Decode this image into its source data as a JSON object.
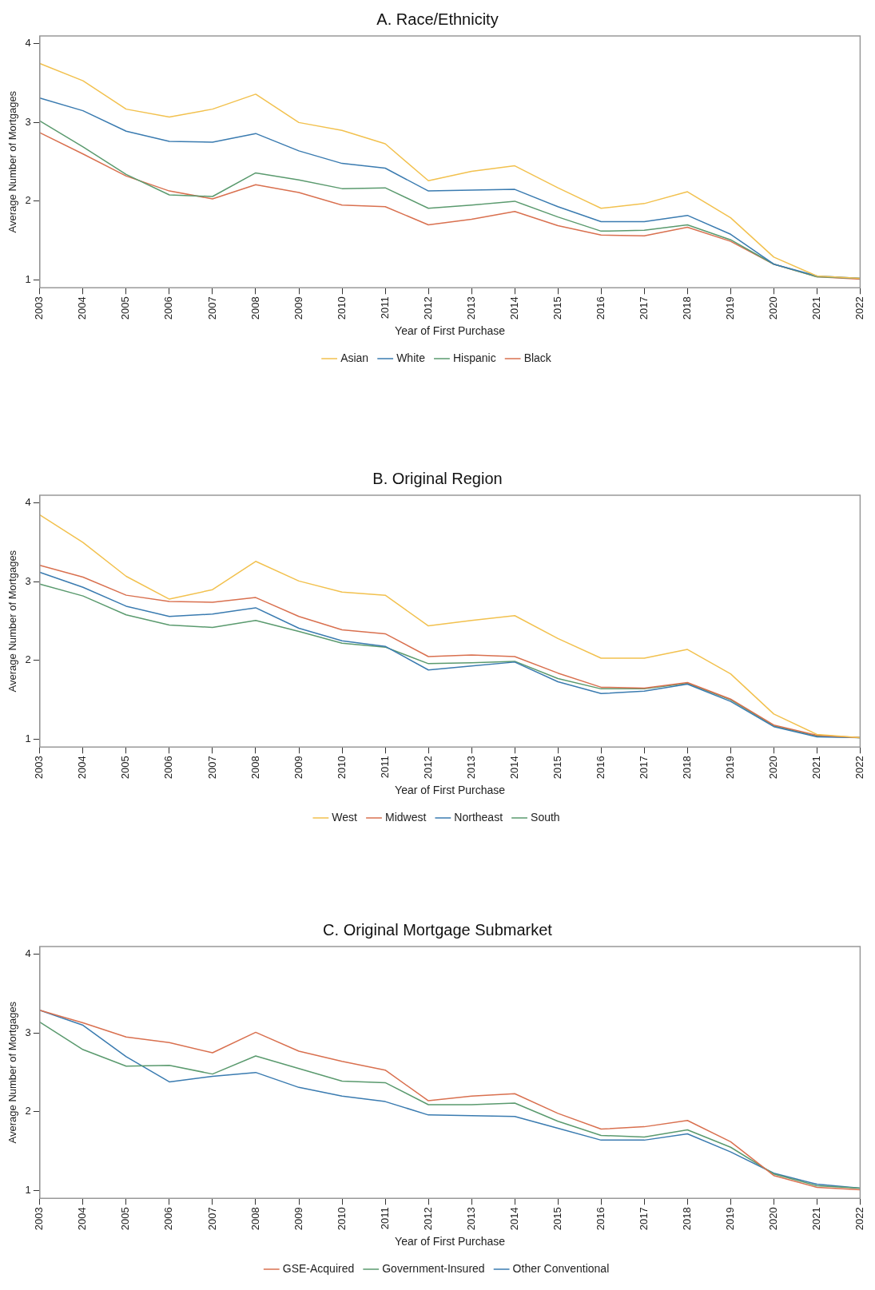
{
  "chart_data": [
    {
      "type": "line",
      "title": "A. Race/Ethnicity",
      "xlabel": "Year of First Purchase",
      "ylabel": "Average Number of Mortgages",
      "categories": [
        "2003",
        "2004",
        "2005",
        "2006",
        "2007",
        "2008",
        "2009",
        "2010",
        "2011",
        "2012",
        "2013",
        "2014",
        "2015",
        "2016",
        "2017",
        "2018",
        "2019",
        "2020",
        "2021",
        "2022"
      ],
      "ylim": [
        0.9,
        4.1
      ],
      "yticks": [
        1,
        2,
        3,
        4
      ],
      "grid": false,
      "legend": "bottom",
      "marker": "none",
      "line_style": "solid",
      "series": [
        {
          "name": "Asian",
          "color": "#f2c14e",
          "values": [
            3.75,
            3.53,
            3.17,
            3.07,
            3.17,
            3.36,
            3.0,
            2.9,
            2.73,
            2.26,
            2.38,
            2.45,
            2.17,
            1.91,
            1.97,
            2.12,
            1.79,
            1.29,
            1.05,
            1.02
          ]
        },
        {
          "name": "White",
          "color": "#3a7bb0",
          "values": [
            3.31,
            3.15,
            2.89,
            2.76,
            2.75,
            2.86,
            2.64,
            2.48,
            2.42,
            2.13,
            2.14,
            2.15,
            1.93,
            1.74,
            1.74,
            1.82,
            1.58,
            1.2,
            1.05,
            1.02
          ]
        },
        {
          "name": "Hispanic",
          "color": "#5a9a6e",
          "values": [
            3.02,
            2.69,
            2.34,
            2.08,
            2.06,
            2.36,
            2.27,
            2.16,
            2.17,
            1.91,
            1.95,
            2.0,
            1.8,
            1.62,
            1.63,
            1.7,
            1.51,
            1.2,
            1.04,
            1.02
          ]
        },
        {
          "name": "Black",
          "color": "#d9704f",
          "values": [
            2.87,
            2.6,
            2.32,
            2.13,
            2.03,
            2.21,
            2.11,
            1.95,
            1.93,
            1.7,
            1.77,
            1.87,
            1.69,
            1.57,
            1.56,
            1.67,
            1.49,
            1.2,
            1.04,
            1.01
          ]
        }
      ]
    },
    {
      "type": "line",
      "title": "B. Original Region",
      "xlabel": "Year of First Purchase",
      "ylabel": "Average Number of Mortgages",
      "categories": [
        "2003",
        "2004",
        "2005",
        "2006",
        "2007",
        "2008",
        "2009",
        "2010",
        "2011",
        "2012",
        "2013",
        "2014",
        "2015",
        "2016",
        "2017",
        "2018",
        "2019",
        "2020",
        "2021",
        "2022"
      ],
      "ylim": [
        0.9,
        4.1
      ],
      "yticks": [
        1,
        2,
        3,
        4
      ],
      "grid": false,
      "legend": "bottom",
      "marker": "none",
      "line_style": "solid",
      "series": [
        {
          "name": "West",
          "color": "#f2c14e",
          "values": [
            3.85,
            3.5,
            3.07,
            2.78,
            2.9,
            3.26,
            3.01,
            2.87,
            2.83,
            2.44,
            2.51,
            2.57,
            2.28,
            2.03,
            2.03,
            2.14,
            1.83,
            1.32,
            1.06,
            1.02
          ]
        },
        {
          "name": "Midwest",
          "color": "#d9704f",
          "values": [
            3.21,
            3.06,
            2.83,
            2.75,
            2.74,
            2.8,
            2.56,
            2.39,
            2.34,
            2.05,
            2.07,
            2.05,
            1.84,
            1.66,
            1.65,
            1.72,
            1.51,
            1.18,
            1.05,
            1.02
          ]
        },
        {
          "name": "Northeast",
          "color": "#3a7bb0",
          "values": [
            3.12,
            2.93,
            2.69,
            2.56,
            2.59,
            2.67,
            2.41,
            2.25,
            2.18,
            1.88,
            1.93,
            1.98,
            1.73,
            1.58,
            1.61,
            1.7,
            1.48,
            1.16,
            1.03,
            1.02
          ]
        },
        {
          "name": "South",
          "color": "#5a9a6e",
          "values": [
            2.97,
            2.82,
            2.58,
            2.45,
            2.42,
            2.51,
            2.37,
            2.22,
            2.17,
            1.96,
            1.97,
            1.99,
            1.77,
            1.64,
            1.64,
            1.71,
            1.5,
            1.17,
            1.04,
            1.02
          ]
        }
      ]
    },
    {
      "type": "line",
      "title": "C. Original Mortgage Submarket",
      "xlabel": "Year of First Purchase",
      "ylabel": "Average Number of Mortgages",
      "categories": [
        "2003",
        "2004",
        "2005",
        "2006",
        "2007",
        "2008",
        "2009",
        "2010",
        "2011",
        "2012",
        "2013",
        "2014",
        "2015",
        "2016",
        "2017",
        "2018",
        "2019",
        "2020",
        "2021",
        "2022"
      ],
      "ylim": [
        0.9,
        4.1
      ],
      "yticks": [
        1,
        2,
        3,
        4
      ],
      "grid": false,
      "legend": "bottom",
      "marker": "none",
      "line_style": "solid",
      "series": [
        {
          "name": "GSE-Acquired",
          "color": "#d9704f",
          "values": [
            3.29,
            3.13,
            2.95,
            2.88,
            2.75,
            3.01,
            2.77,
            2.64,
            2.53,
            2.14,
            2.2,
            2.23,
            1.98,
            1.78,
            1.81,
            1.89,
            1.62,
            1.19,
            1.04,
            1.01
          ]
        },
        {
          "name": "Government-Insured",
          "color": "#5a9a6e",
          "values": [
            3.14,
            2.79,
            2.58,
            2.59,
            2.48,
            2.71,
            2.55,
            2.39,
            2.37,
            2.09,
            2.09,
            2.11,
            1.88,
            1.7,
            1.68,
            1.77,
            1.55,
            1.21,
            1.06,
            1.03
          ]
        },
        {
          "name": "Other Conventional",
          "color": "#3a7bb0",
          "values": [
            3.29,
            3.1,
            2.7,
            2.38,
            2.45,
            2.5,
            2.31,
            2.2,
            2.13,
            1.96,
            1.95,
            1.94,
            1.79,
            1.64,
            1.64,
            1.72,
            1.49,
            1.22,
            1.08,
            1.03
          ]
        }
      ]
    }
  ]
}
